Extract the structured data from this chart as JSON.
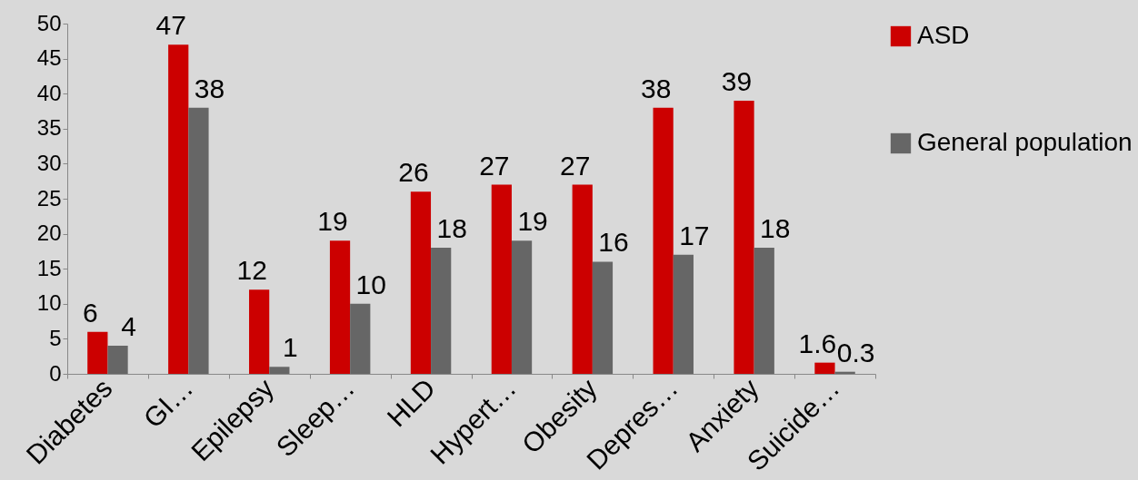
{
  "chart_data": {
    "type": "bar",
    "categories": [
      "Diabetes",
      "GI…",
      "Epilepsy",
      "Sleep…",
      "HLD",
      "Hypert…",
      "Obesity",
      "Depres…",
      "Anxiety",
      "Suicide…"
    ],
    "series": [
      {
        "name": "ASD",
        "color": "#cc0000",
        "values": [
          6,
          47,
          12,
          19,
          26,
          27,
          27,
          38,
          39,
          1.6
        ]
      },
      {
        "name": "General population",
        "color": "#666666",
        "values": [
          4,
          38,
          1,
          10,
          18,
          19,
          16,
          17,
          18,
          0.3
        ]
      }
    ],
    "ylim": [
      0,
      50
    ],
    "yticks": [
      0,
      5,
      10,
      15,
      20,
      25,
      30,
      35,
      40,
      45,
      50
    ],
    "legend": "right",
    "data_labels": true
  }
}
